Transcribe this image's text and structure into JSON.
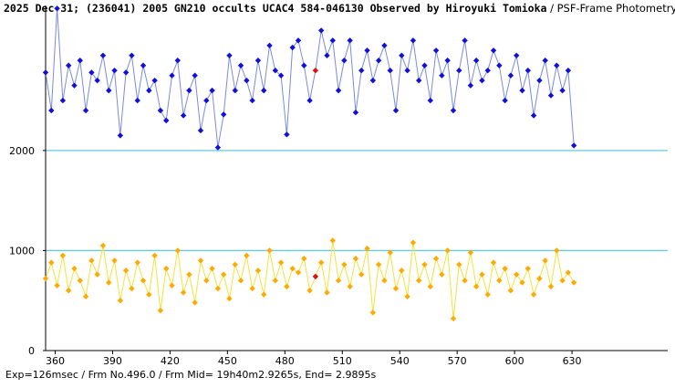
{
  "header": {
    "title": "2025 Dec 31; (236041) 2005 GN210 occults UCAC4 584-046130 Observed by Hiroyuki Tomioka",
    "subtitle": " / PSF-Frame Photometry /"
  },
  "footer": {
    "text": "Exp=126msec / Frm No.496.0 / Frm Mid= 19h40m2.9265s, End= 2.9895s"
  },
  "chart_data": {
    "type": "line",
    "title": "",
    "xlabel": "",
    "ylabel": "",
    "xlim": [
      355,
      680
    ],
    "ylim": [
      0,
      3450
    ],
    "grid": false,
    "x_ticks": [
      360,
      390,
      420,
      450,
      480,
      510,
      540,
      570,
      600,
      630
    ],
    "y_ticks": [
      0,
      1000,
      2000
    ],
    "reference_lines": [
      1000,
      2000
    ],
    "reference_line_color": "#66ccdd",
    "marked_frame": 496,
    "marker_color": "#dd1111",
    "series": [
      {
        "color": "#1010dd",
        "line_color": "#7a8ae0",
        "x": [
          355,
          358,
          361,
          364,
          367,
          370,
          373,
          376,
          379,
          382,
          385,
          388,
          391,
          394,
          397,
          400,
          403,
          406,
          409,
          412,
          415,
          418,
          421,
          424,
          427,
          430,
          433,
          436,
          439,
          442,
          445,
          448,
          451,
          454,
          457,
          460,
          463,
          466,
          469,
          472,
          475,
          478,
          481,
          484,
          487,
          490,
          493,
          496,
          499,
          502,
          505,
          508,
          511,
          514,
          517,
          520,
          523,
          526,
          529,
          532,
          535,
          538,
          541,
          544,
          547,
          550,
          553,
          556,
          559,
          562,
          565,
          568,
          571,
          574,
          577,
          580,
          583,
          586,
          589,
          592,
          595,
          598,
          601,
          604,
          607,
          610,
          613,
          616,
          619,
          622,
          625,
          628,
          631
        ],
        "values": [
          2780,
          2400,
          3420,
          2500,
          2850,
          2650,
          2900,
          2400,
          2780,
          2700,
          2950,
          2600,
          2800,
          2150,
          2780,
          2950,
          2500,
          2850,
          2600,
          2700,
          2400,
          2300,
          2750,
          2900,
          2350,
          2600,
          2750,
          2200,
          2500,
          2600,
          2030,
          2360,
          2950,
          2600,
          2850,
          2700,
          2500,
          2900,
          2600,
          3050,
          2800,
          2750,
          2160,
          3030,
          3100,
          2850,
          2500,
          2800,
          3200,
          2950,
          3100,
          2600,
          2900,
          3100,
          2380,
          2800,
          3000,
          2700,
          2900,
          3050,
          2800,
          2400,
          2950,
          2800,
          3100,
          2700,
          2850,
          2500,
          3000,
          2750,
          2900,
          2400,
          2800,
          3100,
          2650,
          2900,
          2700,
          2800,
          3000,
          2850,
          2500,
          2750,
          2950,
          2600,
          2800,
          2350,
          2700,
          2900,
          2550,
          2850,
          2600,
          2800,
          2050
        ]
      },
      {
        "color": "#ffaa00",
        "line_color": "#f2e33a",
        "x": [
          355,
          358,
          361,
          364,
          367,
          370,
          373,
          376,
          379,
          382,
          385,
          388,
          391,
          394,
          397,
          400,
          403,
          406,
          409,
          412,
          415,
          418,
          421,
          424,
          427,
          430,
          433,
          436,
          439,
          442,
          445,
          448,
          451,
          454,
          457,
          460,
          463,
          466,
          469,
          472,
          475,
          478,
          481,
          484,
          487,
          490,
          493,
          496,
          499,
          502,
          505,
          508,
          511,
          514,
          517,
          520,
          523,
          526,
          529,
          532,
          535,
          538,
          541,
          544,
          547,
          550,
          553,
          556,
          559,
          562,
          565,
          568,
          571,
          574,
          577,
          580,
          583,
          586,
          589,
          592,
          595,
          598,
          601,
          604,
          607,
          610,
          613,
          616,
          619,
          622,
          625,
          628,
          631
        ],
        "values": [
          720,
          880,
          650,
          950,
          600,
          820,
          700,
          540,
          900,
          760,
          1050,
          680,
          900,
          500,
          800,
          620,
          880,
          700,
          560,
          950,
          400,
          820,
          650,
          1000,
          580,
          760,
          480,
          900,
          700,
          820,
          620,
          760,
          520,
          860,
          700,
          950,
          620,
          800,
          560,
          1000,
          700,
          880,
          640,
          820,
          780,
          920,
          600,
          740,
          880,
          580,
          1100,
          700,
          860,
          640,
          920,
          760,
          1020,
          380,
          860,
          700,
          980,
          620,
          800,
          540,
          1080,
          700,
          860,
          640,
          920,
          760,
          1000,
          320,
          860,
          700,
          980,
          640,
          760,
          560,
          880,
          700,
          820,
          600,
          760,
          680,
          820,
          560,
          720,
          900,
          640,
          1000,
          700,
          780,
          680
        ]
      }
    ]
  }
}
